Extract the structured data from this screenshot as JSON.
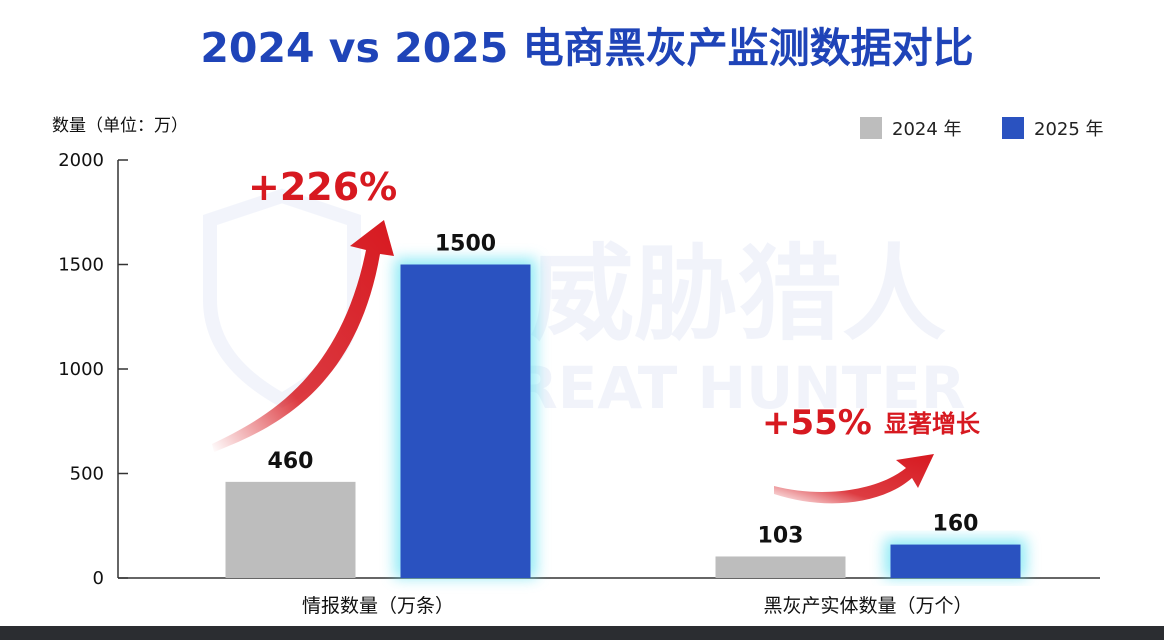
{
  "watermark": {
    "cn": "威胁猎人",
    "en": "THREAT HUNTER"
  },
  "colors": {
    "title": "#1f44b8",
    "series_2024": "#bdbdbd",
    "series_2025": "#2a52c0",
    "glow": "#63e2f2",
    "annotation": "#d71920"
  },
  "chart_data": {
    "type": "bar",
    "title": "2024 vs 2025 电商黑灰产监测数据对比",
    "ylabel": "数量（单位：万）",
    "xlabel": "",
    "ylim": [
      0,
      2000
    ],
    "yticks": [
      0,
      500,
      1000,
      1500,
      2000
    ],
    "grid": false,
    "legend_position": "top-right",
    "categories": [
      "情报数量（万条）",
      "黑灰产实体数量（万个）"
    ],
    "series": [
      {
        "name": "2024 年",
        "values": [
          460,
          103
        ]
      },
      {
        "name": "2025 年",
        "values": [
          1500,
          160
        ]
      }
    ],
    "data_labels": [
      [
        "460",
        "103"
      ],
      [
        "1500",
        "160"
      ]
    ],
    "annotations": [
      {
        "text": "+226%",
        "sub": ""
      },
      {
        "text": "+55%",
        "sub": "显著增长"
      }
    ]
  }
}
